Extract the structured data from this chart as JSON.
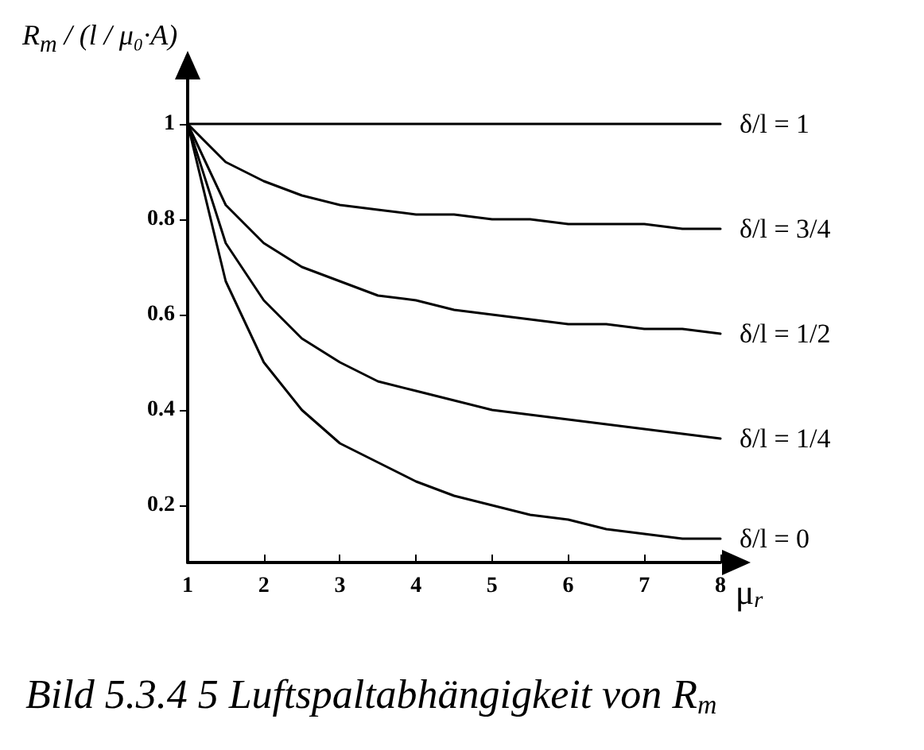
{
  "chart_data": {
    "type": "line",
    "xlabel": "μ$_{r}$",
    "ylabel": "R$_{m}$ / (l / μ₀·A)",
    "annotations": [
      "Bild 5.3.4 5 Luftspaltabhängigkeit von R$_{m}$"
    ],
    "x": [
      1,
      1.5,
      2,
      2.5,
      3,
      3.5,
      4,
      4.5,
      5,
      5.5,
      6,
      6.5,
      7,
      7.5,
      8
    ],
    "series": [
      {
        "name": "δ/l = 1",
        "color": "#000000",
        "values": [
          1,
          1,
          1,
          1,
          1,
          1,
          1,
          1,
          1,
          1,
          1,
          1,
          1,
          1,
          1
        ]
      },
      {
        "name": "δ/l = 3/4",
        "color": "#000000",
        "values": [
          1,
          0.92,
          0.88,
          0.85,
          0.83,
          0.82,
          0.81,
          0.81,
          0.8,
          0.8,
          0.79,
          0.79,
          0.79,
          0.78,
          0.78
        ]
      },
      {
        "name": "δ/l = 1/2",
        "color": "#000000",
        "values": [
          1,
          0.83,
          0.75,
          0.7,
          0.67,
          0.64,
          0.63,
          0.61,
          0.6,
          0.59,
          0.58,
          0.58,
          0.57,
          0.57,
          0.56
        ]
      },
      {
        "name": "δ/l = 1/4",
        "color": "#000000",
        "values": [
          1,
          0.75,
          0.63,
          0.55,
          0.5,
          0.46,
          0.44,
          0.42,
          0.4,
          0.39,
          0.38,
          0.37,
          0.36,
          0.35,
          0.34
        ]
      },
      {
        "name": "δ/l = 0",
        "color": "#000000",
        "values": [
          1,
          0.67,
          0.5,
          0.4,
          0.33,
          0.29,
          0.25,
          0.22,
          0.2,
          0.18,
          0.17,
          0.15,
          0.14,
          0.13,
          0.13
        ]
      }
    ],
    "xlim": [
      1,
      8
    ],
    "xticks": [
      1,
      2,
      3,
      4,
      5,
      6,
      7,
      8
    ],
    "ylim": [
      0.08,
      1.1
    ],
    "yticks": [
      0.2,
      0.4,
      0.6,
      0.8,
      1
    ],
    "grid": false,
    "legend": false,
    "marker": "none",
    "line_style": "solid"
  }
}
